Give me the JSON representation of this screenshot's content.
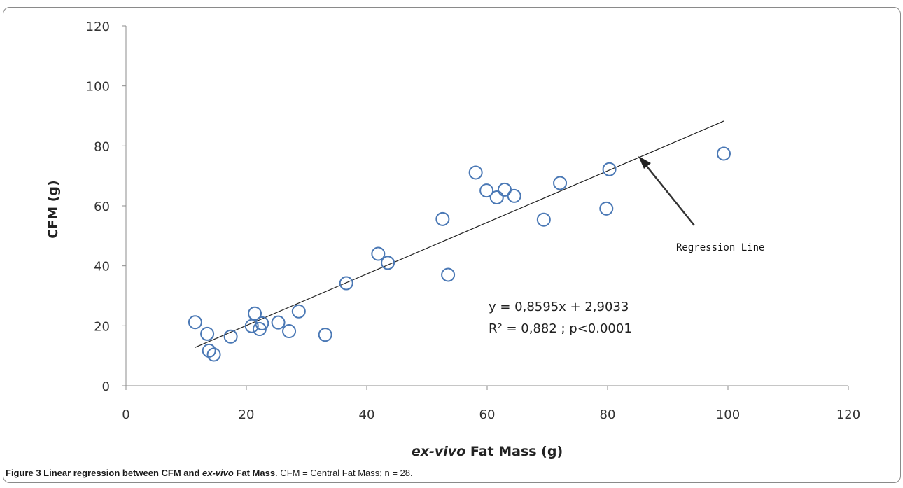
{
  "chart_data": {
    "type": "scatter",
    "xlabel_italic": "ex-vivo",
    "xlabel_rest": "Fat Mass (g)",
    "ylabel": "CFM  (g)",
    "xlim": [
      0,
      120
    ],
    "ylim": [
      0,
      120
    ],
    "x_ticks": [
      "0",
      "20",
      "40",
      "60",
      "80",
      "100",
      "120"
    ],
    "y_ticks": [
      "0",
      "20",
      "40",
      "60",
      "80",
      "100",
      "120"
    ],
    "points": [
      {
        "x": 11.5,
        "y": 21.2
      },
      {
        "x": 13.5,
        "y": 17.3
      },
      {
        "x": 13.8,
        "y": 11.7
      },
      {
        "x": 14.6,
        "y": 10.4
      },
      {
        "x": 17.4,
        "y": 16.4
      },
      {
        "x": 20.9,
        "y": 19.9
      },
      {
        "x": 21.4,
        "y": 24.1
      },
      {
        "x": 22.2,
        "y": 18.9
      },
      {
        "x": 22.6,
        "y": 20.8
      },
      {
        "x": 25.3,
        "y": 21.1
      },
      {
        "x": 27.1,
        "y": 18.2
      },
      {
        "x": 28.7,
        "y": 24.8
      },
      {
        "x": 33.1,
        "y": 17.0
      },
      {
        "x": 36.6,
        "y": 34.2
      },
      {
        "x": 41.9,
        "y": 44.0
      },
      {
        "x": 43.5,
        "y": 41.0
      },
      {
        "x": 52.6,
        "y": 55.6
      },
      {
        "x": 53.5,
        "y": 37.0
      },
      {
        "x": 58.1,
        "y": 71.1
      },
      {
        "x": 59.9,
        "y": 65.1
      },
      {
        "x": 61.6,
        "y": 62.8
      },
      {
        "x": 62.9,
        "y": 65.4
      },
      {
        "x": 64.5,
        "y": 63.3
      },
      {
        "x": 69.4,
        "y": 55.4
      },
      {
        "x": 72.1,
        "y": 67.6
      },
      {
        "x": 79.8,
        "y": 59.1
      },
      {
        "x": 80.3,
        "y": 72.2
      },
      {
        "x": 99.3,
        "y": 77.4
      }
    ],
    "regression": {
      "slope": 0.8595,
      "intercept": 2.9033,
      "x_range": [
        11.5,
        99.3
      ]
    },
    "equation": "y = 0,8595x + 2,9033",
    "r2_text": "R² = 0,882 ; p<0.0001",
    "callout": "Regression Line",
    "grid": false,
    "colors": {
      "marker": "#4a78b5",
      "line": "#222222",
      "axis": "#8c8c8c"
    }
  },
  "caption": {
    "bold_prefix": "Figure 3 Linear regression between CFM and ",
    "bold_italic": "ex-vivo",
    "bold_suffix": " Fat Mass",
    "rest": ". CFM = Central Fat Mass; n = 28."
  }
}
